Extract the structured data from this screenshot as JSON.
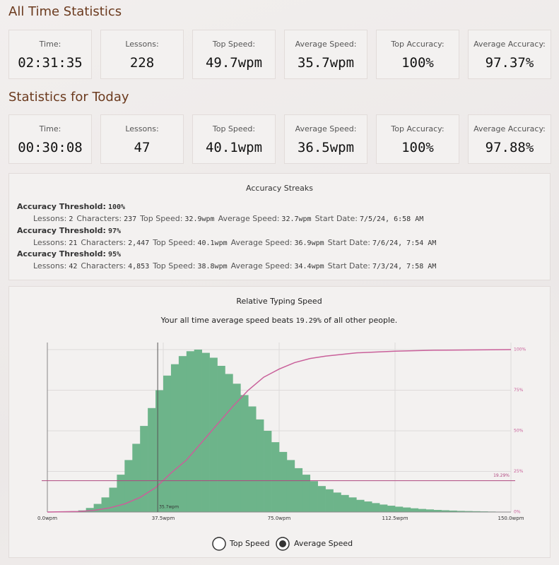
{
  "all_time": {
    "title": "All Time Statistics",
    "stats": [
      {
        "label": "Time:",
        "value": "02:31:35"
      },
      {
        "label": "Lessons:",
        "value": "228"
      },
      {
        "label": "Top Speed:",
        "value": "49.7wpm"
      },
      {
        "label": "Average Speed:",
        "value": "35.7wpm"
      },
      {
        "label": "Top Accuracy:",
        "value": "100%"
      },
      {
        "label": "Average Accuracy:",
        "value": "97.37%"
      }
    ]
  },
  "today": {
    "title": "Statistics for Today",
    "stats": [
      {
        "label": "Time:",
        "value": "00:30:08"
      },
      {
        "label": "Lessons:",
        "value": "47"
      },
      {
        "label": "Top Speed:",
        "value": "40.1wpm"
      },
      {
        "label": "Average Speed:",
        "value": "36.5wpm"
      },
      {
        "label": "Top Accuracy:",
        "value": "100%"
      },
      {
        "label": "Average Accuracy:",
        "value": "97.88%"
      }
    ]
  },
  "streaks": {
    "title": "Accuracy Streaks",
    "items": [
      {
        "threshold_label": "Accuracy Threshold:",
        "threshold": "100%",
        "fields": [
          {
            "label": "Lessons:",
            "value": "2"
          },
          {
            "label": "Characters:",
            "value": "237"
          },
          {
            "label": "Top Speed:",
            "value": "32.9wpm"
          },
          {
            "label": "Average Speed:",
            "value": "32.7wpm"
          },
          {
            "label": "Start Date:",
            "value": "7/5/24, 6:58 AM"
          }
        ]
      },
      {
        "threshold_label": "Accuracy Threshold:",
        "threshold": "97%",
        "fields": [
          {
            "label": "Lessons:",
            "value": "21"
          },
          {
            "label": "Characters:",
            "value": "2,447"
          },
          {
            "label": "Top Speed:",
            "value": "40.1wpm"
          },
          {
            "label": "Average Speed:",
            "value": "36.9wpm"
          },
          {
            "label": "Start Date:",
            "value": "7/6/24, 7:54 AM"
          }
        ]
      },
      {
        "threshold_label": "Accuracy Threshold:",
        "threshold": "95%",
        "fields": [
          {
            "label": "Lessons:",
            "value": "42"
          },
          {
            "label": "Characters:",
            "value": "4,853"
          },
          {
            "label": "Top Speed:",
            "value": "38.8wpm"
          },
          {
            "label": "Average Speed:",
            "value": "34.4wpm"
          },
          {
            "label": "Start Date:",
            "value": "7/3/24, 7:58 AM"
          }
        ]
      }
    ]
  },
  "chart_data": {
    "type": "histogram",
    "title": "Relative Typing Speed",
    "subtitle": [
      "Your all time average speed beats",
      "19.29%",
      "of all other people."
    ],
    "color": "#6db48a",
    "grid": true,
    "bins": [
      0,
      2.5,
      5,
      7.5,
      10,
      12.5,
      15,
      17.5,
      20,
      22.5,
      25,
      27.5,
      30,
      32.5,
      35,
      37.5,
      40,
      42.5,
      45,
      47.5,
      50,
      52.5,
      55,
      57.5,
      60,
      62.5,
      65,
      67.5,
      70,
      72.5,
      75,
      77.5,
      80,
      82.5,
      85,
      87.5,
      90,
      92.5,
      95,
      97.5,
      100,
      102.5,
      105,
      107.5,
      110,
      112.5,
      115,
      117.5,
      120,
      122.5,
      125,
      127.5,
      130,
      132.5,
      135,
      137.5,
      140,
      142.5,
      145,
      147.5,
      150
    ],
    "values": [
      0,
      0,
      0.2,
      0.5,
      1,
      2.5,
      5,
      9,
      15,
      23,
      32,
      42,
      53,
      64,
      75,
      84,
      91,
      96,
      99,
      100,
      98,
      95,
      90,
      85,
      79,
      72,
      65,
      57,
      50,
      43,
      37,
      32,
      27,
      23,
      19,
      16,
      14,
      12,
      10.5,
      9,
      7.5,
      6.5,
      5.5,
      4.6,
      3.9,
      3.3,
      2.8,
      2.3,
      1.9,
      1.6,
      1.3,
      1.1,
      0.9,
      0.7,
      0.6,
      0.5,
      0.4,
      0.3,
      0.2,
      0.1
    ],
    "xlim": [
      0,
      150
    ],
    "ylim": [
      0,
      100
    ],
    "xticks": [
      {
        "value": 0,
        "label": "0.0wpm"
      },
      {
        "value": 37.5,
        "label": "37.5wpm"
      },
      {
        "value": 75,
        "label": "75.0wpm"
      },
      {
        "value": 112.5,
        "label": "112.5wpm"
      },
      {
        "value": 150,
        "label": "150.0wpm"
      }
    ],
    "y2lim": [
      0,
      100
    ],
    "y2ticks": [
      {
        "value": 0,
        "label": "0%"
      },
      {
        "value": 25,
        "label": "25%"
      },
      {
        "value": 50,
        "label": "50%"
      },
      {
        "value": 75,
        "label": "75%"
      },
      {
        "value": 100,
        "label": "100%"
      }
    ],
    "line": {
      "axis": "y2",
      "color": "#c9609a",
      "x": [
        0,
        10,
        15,
        20,
        25,
        30,
        35,
        40,
        45,
        50,
        55,
        60,
        65,
        70,
        75,
        80,
        85,
        90,
        100,
        112.5,
        125,
        150
      ],
      "values": [
        0,
        0.3,
        1,
        2.5,
        5,
        9,
        15,
        24,
        32,
        43,
        54,
        65,
        75,
        83,
        88,
        92,
        94.5,
        96,
        98,
        99,
        99.6,
        100
      ]
    },
    "vline": {
      "value": 35.7,
      "label": "35.7wpm"
    },
    "hline": {
      "value": 19.29,
      "label": "19.29%",
      "color": "#b0477f"
    }
  },
  "controls": {
    "options": [
      "Top Speed",
      "Average Speed"
    ],
    "selected": 1
  }
}
